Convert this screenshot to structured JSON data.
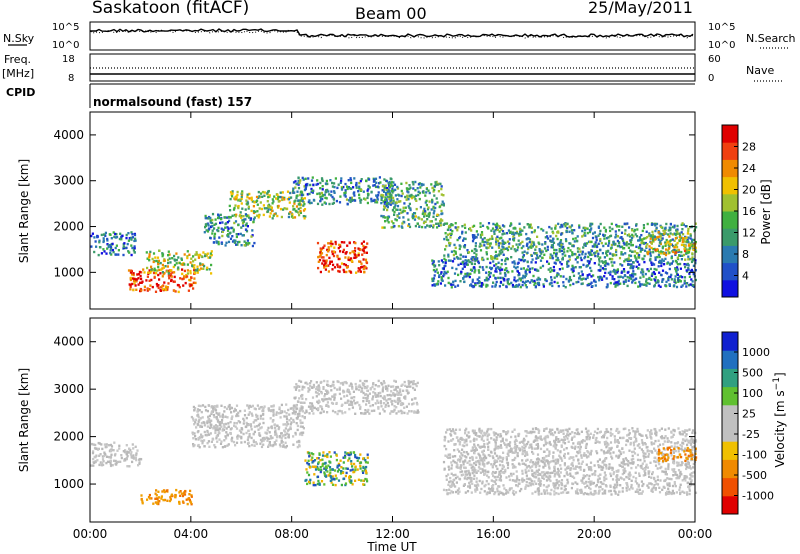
{
  "header": {
    "station": "Saskatoon (fitACF)",
    "beam": "Beam 00",
    "date": "25/May/2011"
  },
  "aux_panels": {
    "nsky": {
      "left_label": "N.Sky",
      "right_label": "N.Search",
      "left_ticks": [
        "10^5",
        "10^0"
      ],
      "right_ticks": [
        "10^5",
        "10^0"
      ]
    },
    "freq": {
      "left_label_1": "Freq.",
      "left_label_2": "[MHz]",
      "right_label": "Nave",
      "left_ticks": [
        "18",
        "8"
      ],
      "right_ticks": [
        "60",
        "0"
      ]
    },
    "cpid": {
      "label": "CPID",
      "program_text": "normalsound (fast) 157"
    }
  },
  "chart_data": [
    {
      "type": "heatmap",
      "name": "power",
      "ylabel": "Slant Range [km]",
      "ylim": [
        200,
        4500
      ],
      "yticks": [
        1000,
        2000,
        3000,
        4000
      ],
      "xlim": [
        0,
        24
      ],
      "colorbar": {
        "label": "Power [dB]",
        "range": [
          0,
          32
        ],
        "ticks": [
          4,
          8,
          12,
          16,
          20,
          24,
          28
        ],
        "colors": [
          "#1010e0",
          "#2050c8",
          "#2a7ab0",
          "#3a9a6a",
          "#40b040",
          "#a0c030",
          "#f0c000",
          "#f08a00",
          "#f04010",
          "#e00000"
        ]
      },
      "echo_regions": [
        {
          "t0": 0.0,
          "t1": 1.8,
          "r0": 1400,
          "r1": 1900,
          "level": 0.25
        },
        {
          "t0": 1.5,
          "t1": 4.2,
          "r0": 600,
          "r1": 1100,
          "level": 0.85
        },
        {
          "t0": 2.2,
          "t1": 4.8,
          "r0": 1000,
          "r1": 1500,
          "level": 0.55
        },
        {
          "t0": 4.5,
          "t1": 6.5,
          "r0": 1600,
          "r1": 2300,
          "level": 0.3
        },
        {
          "t0": 5.5,
          "t1": 8.5,
          "r0": 2200,
          "r1": 2800,
          "level": 0.5
        },
        {
          "t0": 8.0,
          "t1": 12.0,
          "r0": 2500,
          "r1": 3100,
          "level": 0.3
        },
        {
          "t0": 9.0,
          "t1": 11.0,
          "r0": 1000,
          "r1": 1700,
          "level": 0.9
        },
        {
          "t0": 11.5,
          "t1": 14.0,
          "r0": 2000,
          "r1": 3000,
          "level": 0.4
        },
        {
          "t0": 13.5,
          "t1": 24.0,
          "r0": 700,
          "r1": 1300,
          "level": 0.25
        },
        {
          "t0": 14.0,
          "t1": 24.0,
          "r0": 1300,
          "r1": 2100,
          "level": 0.35
        },
        {
          "t0": 22.0,
          "t1": 24.0,
          "r0": 1400,
          "r1": 1900,
          "level": 0.6
        }
      ]
    },
    {
      "type": "heatmap",
      "name": "velocity",
      "ylabel": "Slant Range [km]",
      "xlabel": "Time UT",
      "ylim": [
        200,
        4500
      ],
      "yticks": [
        1000,
        2000,
        3000,
        4000
      ],
      "xlim": [
        0,
        24
      ],
      "xticks": [
        "00:00",
        "04:00",
        "08:00",
        "12:00",
        "16:00",
        "20:00",
        "00:00"
      ],
      "colorbar": {
        "label": "Velocity [m s^-1]",
        "ticks": [
          "1000",
          "500",
          "100",
          "25",
          "-25",
          "-100",
          "-500",
          "-1000"
        ],
        "colors": [
          "#1020d0",
          "#2070c0",
          "#30a080",
          "#60c030",
          "#c0c0c0",
          "#c0c0c0",
          "#f0c000",
          "#f08a00",
          "#f05000",
          "#e00000"
        ]
      },
      "echo_regions": [
        {
          "t0": 0.0,
          "t1": 2.0,
          "r0": 1400,
          "r1": 1900,
          "v": "gray"
        },
        {
          "t0": 2.0,
          "t1": 4.0,
          "r0": 600,
          "r1": 900,
          "v": "orange"
        },
        {
          "t0": 4.0,
          "t1": 8.5,
          "r0": 1800,
          "r1": 2700,
          "v": "gray"
        },
        {
          "t0": 8.5,
          "t1": 11.0,
          "r0": 1000,
          "r1": 1700,
          "v": "green"
        },
        {
          "t0": 8.0,
          "t1": 13.0,
          "r0": 2500,
          "r1": 3200,
          "v": "gray"
        },
        {
          "t0": 14.0,
          "t1": 24.0,
          "r0": 800,
          "r1": 2200,
          "v": "gray"
        },
        {
          "t0": 22.5,
          "t1": 24.0,
          "r0": 1500,
          "r1": 1800,
          "v": "orange"
        }
      ]
    }
  ]
}
